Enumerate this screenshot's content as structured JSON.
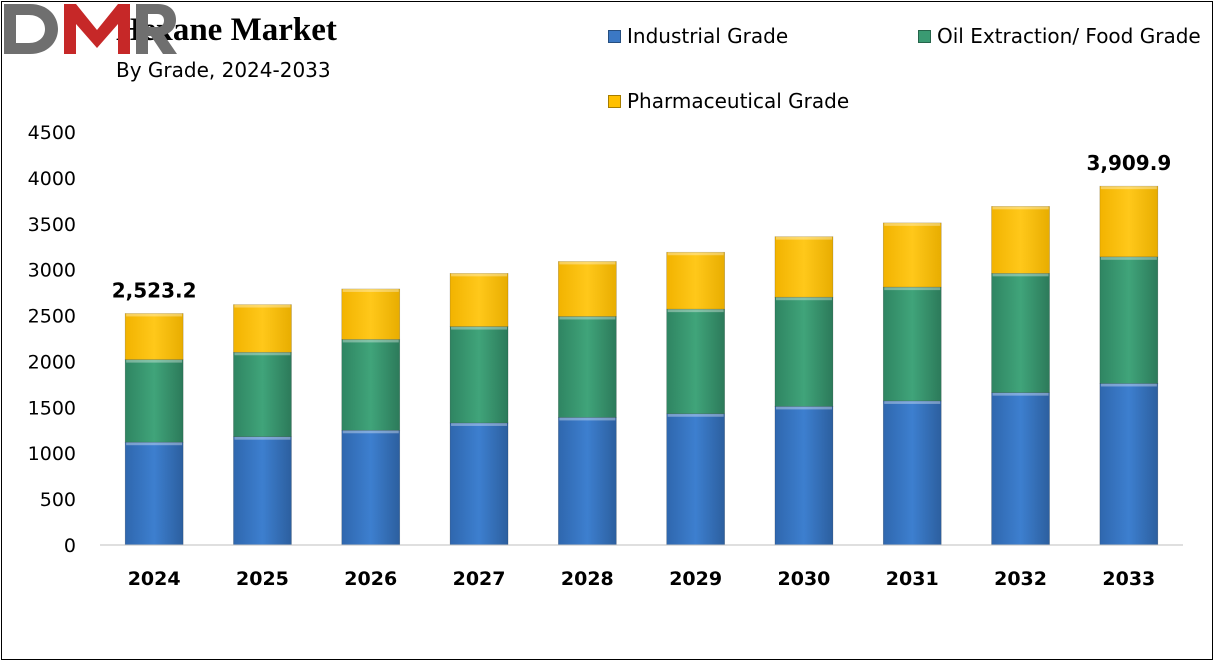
{
  "header": {
    "title": "Hexane Market",
    "subtitle": "By Grade,  2024-2033"
  },
  "logo": {
    "text": "DMR"
  },
  "colors": {
    "industrial": "#3B78C4",
    "oil_food": "#3A9A72",
    "pharma": "#FFC000"
  },
  "chart_data": {
    "type": "bar",
    "stacked": true,
    "title": "Hexane Market",
    "subtitle": "By Grade,  2024-2033",
    "xlabel": "",
    "ylabel": "",
    "ylim": [
      0,
      4500
    ],
    "yticks": [
      0,
      500,
      1000,
      1500,
      2000,
      2500,
      3000,
      3500,
      4000,
      4500
    ],
    "grid": false,
    "legend_position": "top-right",
    "categories": [
      "2024",
      "2025",
      "2026",
      "2027",
      "2028",
      "2029",
      "2030",
      "2031",
      "2032",
      "2033"
    ],
    "series": [
      {
        "name": "Industrial Grade",
        "color": "#3B78C4",
        "values": [
          1120,
          1180,
          1250,
          1330,
          1390,
          1430,
          1510,
          1570,
          1660,
          1760
        ]
      },
      {
        "name": "Oil Extraction/ Food Grade",
        "color": "#3A9A72",
        "values": [
          900,
          920,
          990,
          1050,
          1100,
          1140,
          1190,
          1240,
          1300,
          1380
        ]
      },
      {
        "name": "Pharmaceutical Grade",
        "color": "#FFC000",
        "values": [
          503.2,
          520,
          550,
          580,
          600,
          620,
          660,
          700,
          730,
          769.9
        ]
      }
    ],
    "annotations": [
      {
        "category": "2024",
        "text": "2,523.2"
      },
      {
        "category": "2033",
        "text": "3,909.9"
      }
    ]
  }
}
